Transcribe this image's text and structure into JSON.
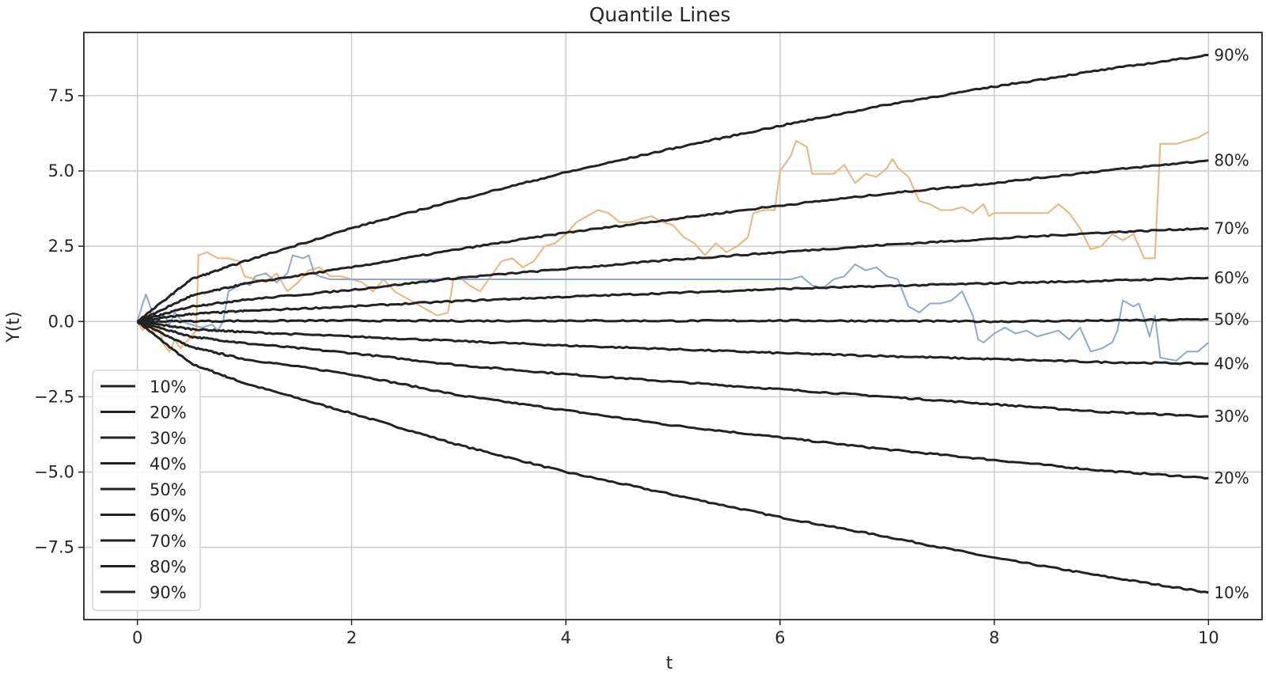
{
  "chart_data": {
    "type": "line",
    "title": "Quantile Lines",
    "xlabel": "t",
    "ylabel": "Y(t)",
    "xlim": [
      -0.5,
      10.5
    ],
    "ylim": [
      -9.9,
      9.6
    ],
    "xticks": [
      0,
      2,
      4,
      6,
      8,
      10
    ],
    "yticks": [
      -7.5,
      -5.0,
      -2.5,
      0.0,
      2.5,
      5.0,
      7.5
    ],
    "grid": true,
    "legend_position": "lower-left",
    "quantile_color": "#222222",
    "quantiles": [
      {
        "name": "10%",
        "end_label": "10%",
        "points": [
          [
            0,
            0
          ],
          [
            0.5,
            -1.4
          ],
          [
            1,
            -2.05
          ],
          [
            2,
            -3.05
          ],
          [
            3,
            -4.1
          ],
          [
            4,
            -5.0
          ],
          [
            5,
            -5.75
          ],
          [
            6,
            -6.5
          ],
          [
            7,
            -7.15
          ],
          [
            8,
            -7.85
          ],
          [
            9,
            -8.45
          ],
          [
            10,
            -9.0
          ]
        ]
      },
      {
        "name": "20%",
        "end_label": "20%",
        "points": [
          [
            0,
            0
          ],
          [
            0.5,
            -0.85
          ],
          [
            1,
            -1.25
          ],
          [
            2,
            -1.75
          ],
          [
            3,
            -2.45
          ],
          [
            4,
            -2.95
          ],
          [
            5,
            -3.45
          ],
          [
            6,
            -3.85
          ],
          [
            7,
            -4.25
          ],
          [
            8,
            -4.6
          ],
          [
            9,
            -4.95
          ],
          [
            10,
            -5.2
          ]
        ]
      },
      {
        "name": "30%",
        "end_label": "30%",
        "points": [
          [
            0,
            0
          ],
          [
            0.5,
            -0.5
          ],
          [
            1,
            -0.72
          ],
          [
            2,
            -1.05
          ],
          [
            3,
            -1.45
          ],
          [
            4,
            -1.75
          ],
          [
            5,
            -2.0
          ],
          [
            6,
            -2.25
          ],
          [
            7,
            -2.5
          ],
          [
            8,
            -2.75
          ],
          [
            9,
            -3.0
          ],
          [
            10,
            -3.15
          ]
        ]
      },
      {
        "name": "40%",
        "end_label": "40%",
        "points": [
          [
            0,
            0
          ],
          [
            0.5,
            -0.25
          ],
          [
            1,
            -0.35
          ],
          [
            2,
            -0.5
          ],
          [
            3,
            -0.65
          ],
          [
            4,
            -0.8
          ],
          [
            5,
            -0.92
          ],
          [
            6,
            -1.05
          ],
          [
            7,
            -1.15
          ],
          [
            8,
            -1.25
          ],
          [
            9,
            -1.35
          ],
          [
            10,
            -1.4
          ]
        ]
      },
      {
        "name": "50%",
        "end_label": "50%",
        "points": [
          [
            0,
            0
          ],
          [
            1,
            0.02
          ],
          [
            2,
            0.03
          ],
          [
            3,
            0.02
          ],
          [
            4,
            0.03
          ],
          [
            5,
            0.02
          ],
          [
            6,
            0.03
          ],
          [
            7,
            0.02
          ],
          [
            8,
            0.0
          ],
          [
            9,
            0.03
          ],
          [
            10,
            0.07
          ]
        ]
      },
      {
        "name": "60%",
        "end_label": "60%",
        "points": [
          [
            0,
            0
          ],
          [
            0.5,
            0.25
          ],
          [
            1,
            0.35
          ],
          [
            2,
            0.5
          ],
          [
            3,
            0.68
          ],
          [
            4,
            0.82
          ],
          [
            5,
            0.95
          ],
          [
            6,
            1.08
          ],
          [
            7,
            1.18
          ],
          [
            8,
            1.27
          ],
          [
            9,
            1.35
          ],
          [
            10,
            1.45
          ]
        ]
      },
      {
        "name": "70%",
        "end_label": "70%",
        "points": [
          [
            0,
            0
          ],
          [
            0.5,
            0.5
          ],
          [
            1,
            0.72
          ],
          [
            2,
            1.05
          ],
          [
            3,
            1.45
          ],
          [
            4,
            1.75
          ],
          [
            5,
            2.05
          ],
          [
            6,
            2.3
          ],
          [
            7,
            2.55
          ],
          [
            8,
            2.75
          ],
          [
            9,
            2.95
          ],
          [
            10,
            3.1
          ]
        ]
      },
      {
        "name": "80%",
        "end_label": "80%",
        "points": [
          [
            0,
            0
          ],
          [
            0.5,
            0.85
          ],
          [
            1,
            1.25
          ],
          [
            2,
            1.8
          ],
          [
            3,
            2.4
          ],
          [
            4,
            2.95
          ],
          [
            5,
            3.4
          ],
          [
            6,
            3.85
          ],
          [
            7,
            4.25
          ],
          [
            8,
            4.6
          ],
          [
            9,
            5.0
          ],
          [
            10,
            5.35
          ]
        ]
      },
      {
        "name": "90%",
        "end_label": "90%",
        "points": [
          [
            0,
            0
          ],
          [
            0.5,
            1.4
          ],
          [
            1,
            2.0
          ],
          [
            2,
            3.1
          ],
          [
            3,
            4.05
          ],
          [
            4,
            4.95
          ],
          [
            5,
            5.75
          ],
          [
            6,
            6.5
          ],
          [
            7,
            7.2
          ],
          [
            8,
            7.8
          ],
          [
            9,
            8.35
          ],
          [
            10,
            8.85
          ]
        ]
      }
    ],
    "sample_paths": [
      {
        "color": "#f0b47a",
        "points": [
          [
            0,
            0
          ],
          [
            0.05,
            -0.3
          ],
          [
            0.1,
            0.1
          ],
          [
            0.15,
            -0.4
          ],
          [
            0.2,
            -0.2
          ],
          [
            0.25,
            -0.8
          ],
          [
            0.3,
            -1.0
          ],
          [
            0.35,
            -0.6
          ],
          [
            0.4,
            -0.9
          ],
          [
            0.45,
            -0.7
          ],
          [
            0.5,
            -0.5
          ],
          [
            0.55,
            -0.3
          ],
          [
            0.57,
            2.2
          ],
          [
            0.65,
            2.3
          ],
          [
            0.75,
            2.1
          ],
          [
            0.85,
            2.1
          ],
          [
            0.95,
            2.0
          ],
          [
            1.0,
            1.5
          ],
          [
            1.1,
            1.4
          ],
          [
            1.2,
            1.3
          ],
          [
            1.3,
            1.6
          ],
          [
            1.4,
            1.0
          ],
          [
            1.5,
            1.3
          ],
          [
            1.6,
            1.7
          ],
          [
            1.7,
            1.8
          ],
          [
            1.8,
            1.5
          ],
          [
            1.9,
            1.5
          ],
          [
            2.0,
            1.4
          ],
          [
            2.1,
            1.3
          ],
          [
            2.2,
            1.0
          ],
          [
            2.3,
            1.4
          ],
          [
            2.4,
            1.0
          ],
          [
            2.5,
            0.8
          ],
          [
            2.6,
            0.6
          ],
          [
            2.7,
            0.4
          ],
          [
            2.8,
            0.2
          ],
          [
            2.9,
            0.3
          ],
          [
            2.95,
            1.4
          ],
          [
            3.0,
            1.5
          ],
          [
            3.1,
            1.2
          ],
          [
            3.2,
            1.0
          ],
          [
            3.3,
            1.5
          ],
          [
            3.4,
            2.0
          ],
          [
            3.5,
            2.1
          ],
          [
            3.6,
            1.8
          ],
          [
            3.7,
            2.0
          ],
          [
            3.8,
            2.5
          ],
          [
            3.9,
            2.6
          ],
          [
            4.0,
            2.9
          ],
          [
            4.1,
            3.3
          ],
          [
            4.2,
            3.5
          ],
          [
            4.3,
            3.7
          ],
          [
            4.4,
            3.6
          ],
          [
            4.5,
            3.3
          ],
          [
            4.6,
            3.3
          ],
          [
            4.7,
            3.4
          ],
          [
            4.8,
            3.5
          ],
          [
            4.9,
            3.3
          ],
          [
            5.0,
            3.2
          ],
          [
            5.1,
            2.8
          ],
          [
            5.2,
            2.6
          ],
          [
            5.3,
            2.2
          ],
          [
            5.4,
            2.6
          ],
          [
            5.5,
            2.3
          ],
          [
            5.6,
            2.5
          ],
          [
            5.7,
            2.8
          ],
          [
            5.75,
            3.6
          ],
          [
            5.85,
            3.7
          ],
          [
            5.95,
            3.7
          ],
          [
            6.0,
            5.0
          ],
          [
            6.1,
            5.5
          ],
          [
            6.15,
            6.0
          ],
          [
            6.25,
            5.8
          ],
          [
            6.3,
            4.9
          ],
          [
            6.5,
            4.9
          ],
          [
            6.6,
            5.2
          ],
          [
            6.7,
            4.6
          ],
          [
            6.8,
            4.9
          ],
          [
            6.9,
            4.8
          ],
          [
            7.0,
            5.1
          ],
          [
            7.05,
            5.4
          ],
          [
            7.1,
            5.1
          ],
          [
            7.2,
            4.8
          ],
          [
            7.3,
            4.0
          ],
          [
            7.4,
            3.9
          ],
          [
            7.5,
            3.7
          ],
          [
            7.6,
            3.7
          ],
          [
            7.7,
            3.8
          ],
          [
            7.8,
            3.6
          ],
          [
            7.9,
            3.9
          ],
          [
            7.95,
            3.5
          ],
          [
            8.0,
            3.6
          ],
          [
            8.3,
            3.6
          ],
          [
            8.5,
            3.6
          ],
          [
            8.6,
            3.9
          ],
          [
            8.7,
            3.6
          ],
          [
            8.8,
            3.1
          ],
          [
            8.9,
            2.4
          ],
          [
            9.0,
            2.5
          ],
          [
            9.1,
            2.9
          ],
          [
            9.2,
            2.7
          ],
          [
            9.3,
            2.9
          ],
          [
            9.4,
            2.1
          ],
          [
            9.5,
            2.1
          ],
          [
            9.55,
            5.9
          ],
          [
            9.7,
            5.9
          ],
          [
            9.8,
            6.0
          ],
          [
            9.9,
            6.1
          ],
          [
            10.0,
            6.3
          ]
        ]
      },
      {
        "color": "#8fa8cc",
        "points": [
          [
            0,
            0
          ],
          [
            0.05,
            0.6
          ],
          [
            0.08,
            0.9
          ],
          [
            0.12,
            0.5
          ],
          [
            0.18,
            0.1
          ],
          [
            0.25,
            0.2
          ],
          [
            0.3,
            -0.1
          ],
          [
            0.35,
            0.3
          ],
          [
            0.42,
            0.0
          ],
          [
            0.5,
            -0.1
          ],
          [
            0.6,
            -0.2
          ],
          [
            0.7,
            -0.1
          ],
          [
            0.75,
            -0.3
          ],
          [
            0.8,
            0.0
          ],
          [
            0.85,
            1.0
          ],
          [
            0.9,
            1.1
          ],
          [
            1.0,
            1.3
          ],
          [
            1.05,
            1.2
          ],
          [
            1.1,
            1.5
          ],
          [
            1.2,
            1.6
          ],
          [
            1.3,
            1.3
          ],
          [
            1.4,
            1.6
          ],
          [
            1.45,
            2.2
          ],
          [
            1.55,
            2.1
          ],
          [
            1.6,
            2.2
          ],
          [
            1.65,
            1.6
          ],
          [
            1.7,
            1.5
          ],
          [
            1.8,
            1.4
          ],
          [
            2.0,
            1.4
          ],
          [
            3.0,
            1.4
          ],
          [
            4.0,
            1.4
          ],
          [
            5.0,
            1.4
          ],
          [
            6.0,
            1.4
          ],
          [
            6.1,
            1.4
          ],
          [
            6.2,
            1.5
          ],
          [
            6.3,
            1.2
          ],
          [
            6.4,
            1.1
          ],
          [
            6.5,
            1.4
          ],
          [
            6.6,
            1.5
          ],
          [
            6.7,
            1.9
          ],
          [
            6.8,
            1.7
          ],
          [
            6.9,
            1.8
          ],
          [
            7.0,
            1.5
          ],
          [
            7.1,
            1.4
          ],
          [
            7.2,
            0.5
          ],
          [
            7.3,
            0.3
          ],
          [
            7.4,
            0.6
          ],
          [
            7.5,
            0.6
          ],
          [
            7.6,
            0.7
          ],
          [
            7.7,
            1.0
          ],
          [
            7.8,
            0.2
          ],
          [
            7.85,
            -0.6
          ],
          [
            7.9,
            -0.7
          ],
          [
            8.0,
            -0.4
          ],
          [
            8.1,
            -0.2
          ],
          [
            8.2,
            -0.4
          ],
          [
            8.3,
            -0.3
          ],
          [
            8.4,
            -0.5
          ],
          [
            8.5,
            -0.4
          ],
          [
            8.6,
            -0.3
          ],
          [
            8.7,
            -0.6
          ],
          [
            8.8,
            -0.2
          ],
          [
            8.9,
            -1.0
          ],
          [
            9.0,
            -0.9
          ],
          [
            9.1,
            -0.7
          ],
          [
            9.15,
            -0.3
          ],
          [
            9.2,
            0.7
          ],
          [
            9.3,
            0.5
          ],
          [
            9.35,
            0.6
          ],
          [
            9.4,
            0.1
          ],
          [
            9.45,
            -0.5
          ],
          [
            9.5,
            0.2
          ],
          [
            9.55,
            -1.2
          ],
          [
            9.7,
            -1.3
          ],
          [
            9.8,
            -1.0
          ],
          [
            9.9,
            -1.0
          ],
          [
            10.0,
            -0.7
          ]
        ]
      }
    ]
  }
}
